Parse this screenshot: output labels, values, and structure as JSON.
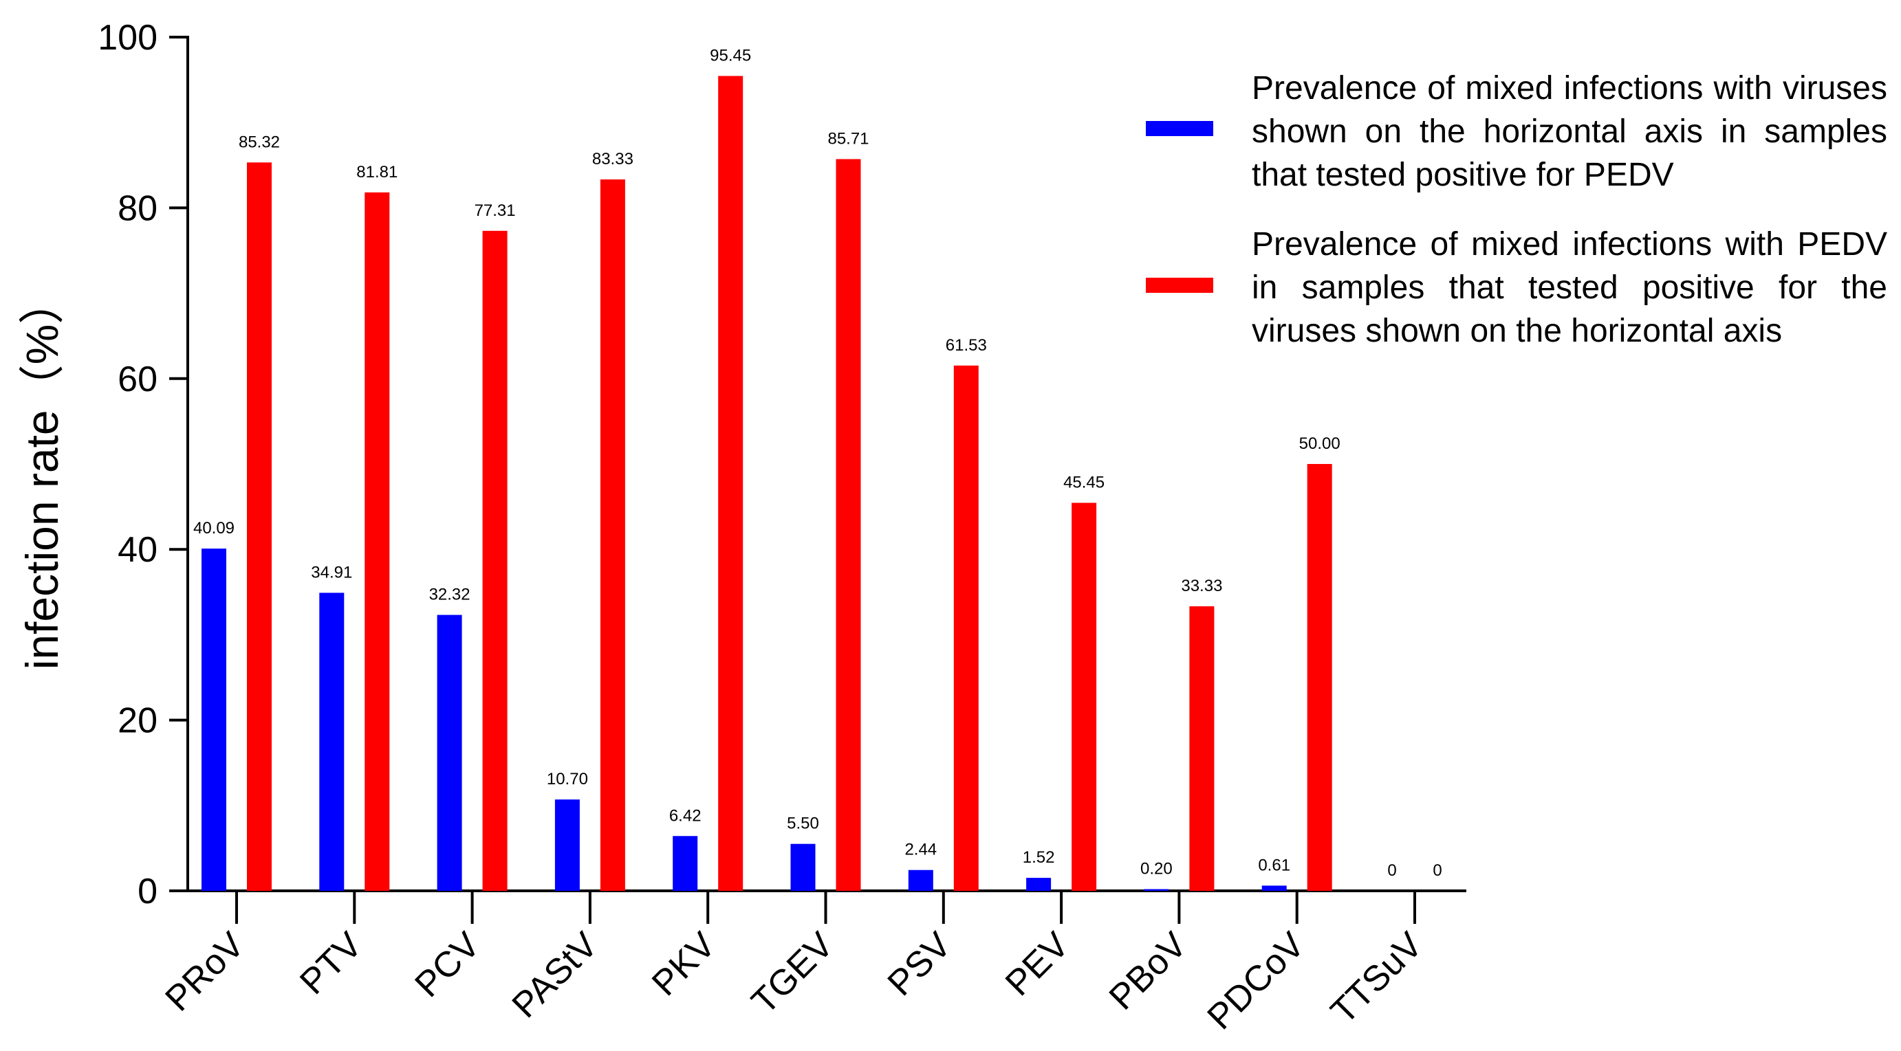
{
  "chart_data": {
    "type": "bar",
    "ylabel": "infection rate（%）",
    "xlabel": "",
    "ylim": [
      0,
      100
    ],
    "yticks": [
      0,
      20,
      40,
      60,
      80,
      100
    ],
    "categories": [
      "PRoV",
      "PTV",
      "PCV",
      "PAStV",
      "PKV",
      "TGEV",
      "PSV",
      "PEV",
      "PBoV",
      "PDCoV",
      "TTSuV"
    ],
    "series": [
      {
        "name": "Prevalence of mixed infections with viruses shown on the horizontal axis in samples that tested positive for PEDV",
        "color": "#0000ff",
        "values": [
          40.09,
          34.91,
          32.32,
          10.7,
          6.42,
          5.5,
          2.44,
          1.52,
          0.2,
          0.61,
          0
        ],
        "labels": [
          "40.09",
          "34.91",
          "32.32",
          "10.70",
          "6.42",
          "5.50",
          "2.44",
          "1.52",
          "0.20",
          "0.61",
          "0"
        ]
      },
      {
        "name": "Prevalence of mixed infections with PEDV in samples that tested positive for the viruses shown on the horizontal axis",
        "color": "#ff0000",
        "values": [
          85.32,
          81.81,
          77.31,
          83.33,
          95.45,
          85.71,
          61.53,
          45.45,
          33.33,
          50.0,
          0
        ],
        "labels": [
          "85.32",
          "81.81",
          "77.31",
          "83.33",
          "95.45",
          "85.71",
          "61.53",
          "45.45",
          "33.33",
          "50.00",
          "0"
        ]
      }
    ],
    "legend_position": "top-right"
  }
}
